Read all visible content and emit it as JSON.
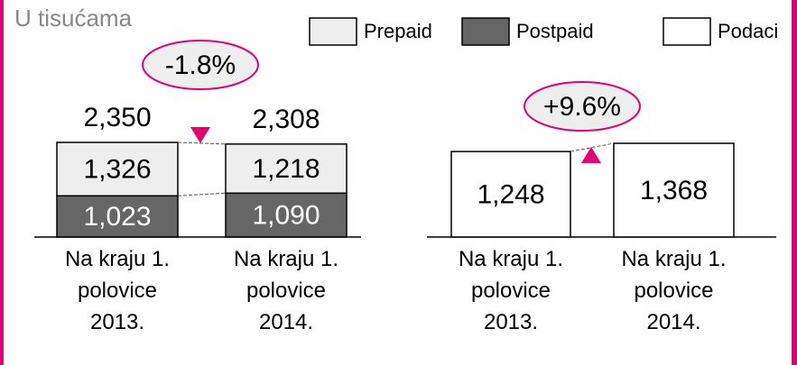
{
  "chart_data": [
    {
      "type": "stacked_bar",
      "title": "U tisućama",
      "categories": [
        "Na kraju 1. polovice 2013.",
        "Na kraju 1. polovice 2014."
      ],
      "series": [
        {
          "name": "Prepaid",
          "color": "#eeeeee",
          "label_color": "#000000",
          "values": [
            1326,
            1218
          ],
          "value_labels": [
            "1,326",
            "1,218"
          ]
        },
        {
          "name": "Postpaid",
          "color": "#666666",
          "label_color": "#ffffff",
          "values": [
            1023,
            1090
          ],
          "value_labels": [
            "1,023",
            "1,090"
          ]
        }
      ],
      "totals": [
        2350,
        2308
      ],
      "total_labels": [
        "2,350",
        "2,308"
      ],
      "annotation": "-1.8%",
      "annotation_color": "#e20074"
    },
    {
      "type": "bar",
      "categories": [
        "Na kraju 1. polovice 2013.",
        "Na kraju 1. polovice 2014."
      ],
      "series": [
        {
          "name": "Podaci",
          "color": "#ffffff",
          "label_color": "#000000",
          "values": [
            1248,
            1368
          ],
          "value_labels": [
            "1,248",
            "1,368"
          ]
        }
      ],
      "annotation": "+9.6%",
      "annotation_color": "#e20074"
    }
  ]
}
